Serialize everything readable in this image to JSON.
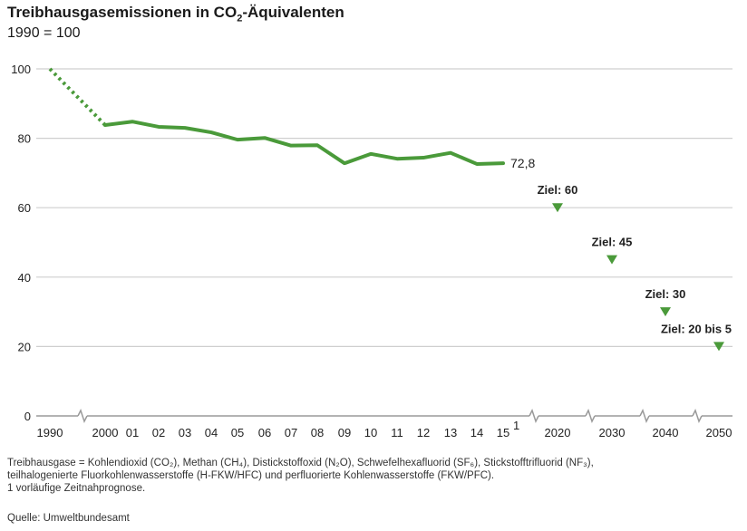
{
  "header": {
    "title_prefix": "Treibhausgasemissionen in CO",
    "title_sub": "2",
    "title_suffix": "-Äquivalenten",
    "subtitle": "1990 = 100"
  },
  "chart_data": {
    "type": "line",
    "title": "Treibhausgasemissionen in CO2-Äquivalenten",
    "subtitle": "1990 = 100",
    "ylim": [
      0,
      100
    ],
    "yticks": [
      0,
      20,
      40,
      60,
      80,
      100
    ],
    "grid": true,
    "x_tick_labels": [
      "1990",
      "2000",
      "01",
      "02",
      "03",
      "04",
      "05",
      "06",
      "07",
      "08",
      "09",
      "10",
      "11",
      "12",
      "13",
      "14",
      "15",
      "2020",
      "2030",
      "2040",
      "2050"
    ],
    "x_tick_superscripts": {
      "15": "1"
    },
    "series": [
      {
        "x": [
          "1990",
          "2000",
          "2001",
          "2002",
          "2003",
          "2004",
          "2005",
          "2006",
          "2007",
          "2008",
          "2009",
          "2010",
          "2011",
          "2012",
          "2013",
          "2014",
          "2015"
        ],
        "values": [
          100,
          83.8,
          84.8,
          83.3,
          83.0,
          81.7,
          79.6,
          80.1,
          77.9,
          78.0,
          72.8,
          75.5,
          74.1,
          74.4,
          75.8,
          72.6,
          72.8
        ],
        "dotted_segment": [
          "1990",
          "2000"
        ],
        "color": "#4a9a3a",
        "end_label": "72,8"
      }
    ],
    "targets": [
      {
        "x": "2020",
        "value": 60,
        "label": "Ziel: 60"
      },
      {
        "x": "2030",
        "value": 45,
        "label": "Ziel: 45"
      },
      {
        "x": "2040",
        "value": 30,
        "label": "Ziel: 30"
      },
      {
        "x": "2050",
        "value": 20,
        "label": "Ziel: 20 bis 5"
      }
    ],
    "axis_breaks": [
      "1990-2000",
      "2015-2020",
      "2020-2030",
      "2030-2040",
      "2040-2050"
    ],
    "colors": {
      "line": "#4a9a3a",
      "target": "#4a9a3a",
      "grid": "#cfcfcf",
      "axis": "#9a9a9a"
    }
  },
  "footnote": {
    "lines": [
      "Treibhausgase = Kohlendioxid (CO₂), Methan (CH₄), Distickstoffoxid (N₂O), Schwefelhexafluorid (SF₆), Stickstofftrifluorid (NF₃),",
      "teilhalogenierte Fluorkohlenwasserstoffe (H-FKW/HFC) und perfluorierte Kohlenwasserstoffe (FKW/PFC).",
      "1 vorläufige Zeitnahprognose."
    ]
  },
  "source": "Quelle: Umweltbundesamt"
}
